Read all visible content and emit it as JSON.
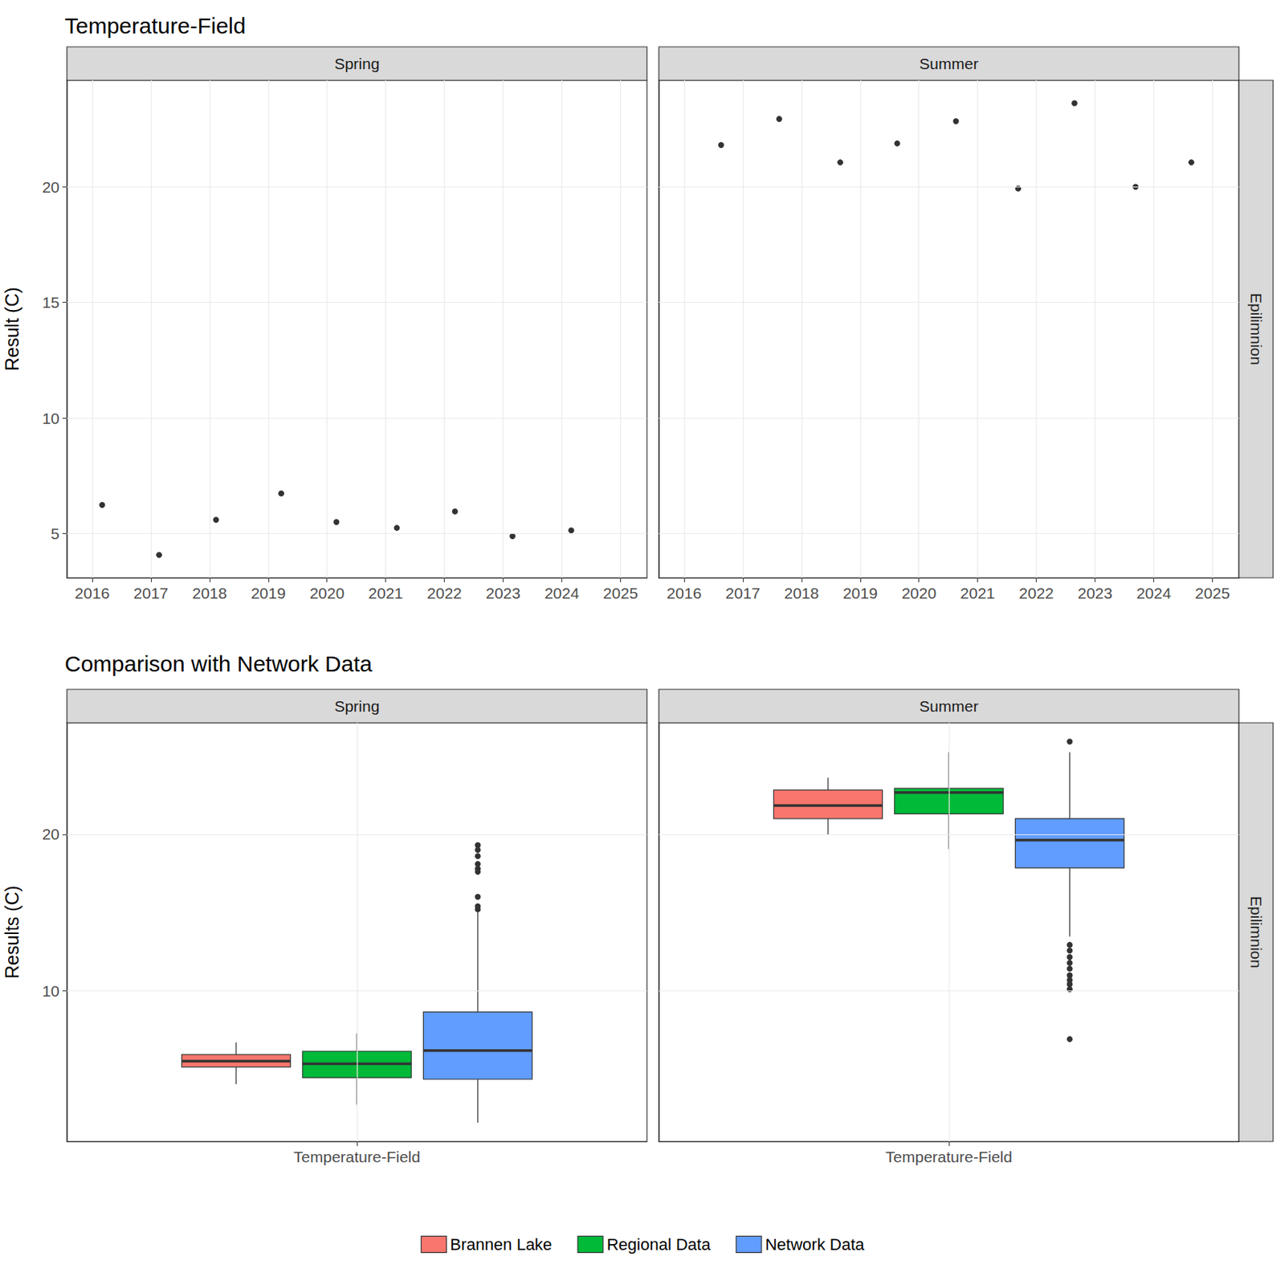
{
  "chart_data": [
    {
      "type": "scatter",
      "title": "Temperature-Field",
      "y_label": "Result (C)",
      "row_label": "Epilimnion",
      "color": "#000000",
      "marker": "circle",
      "grid": true,
      "xlim": [
        2015.57,
        2025.45
      ],
      "xticks": [
        2016,
        2017,
        2018,
        2019,
        2020,
        2021,
        2022,
        2023,
        2024,
        2025
      ],
      "ylim": [
        3.09,
        24.61
      ],
      "yticks": [
        5,
        10,
        15,
        20
      ],
      "facets": [
        {
          "name": "Spring",
          "x": [
            2016.17,
            2017.14,
            2018.11,
            2019.22,
            2020.16,
            2021.19,
            2022.18,
            2023.16,
            2024.16
          ],
          "values": [
            6.24,
            4.08,
            5.6,
            6.74,
            5.5,
            5.25,
            5.96,
            4.89,
            5.14
          ]
        },
        {
          "name": "Summer",
          "x": [
            2016.63,
            2017.62,
            2018.66,
            2019.63,
            2020.63,
            2021.69,
            2022.65,
            2023.69,
            2024.64
          ],
          "values": [
            21.81,
            22.94,
            21.06,
            21.88,
            22.84,
            19.93,
            23.62,
            20.0,
            21.06
          ]
        }
      ]
    },
    {
      "type": "boxplot",
      "title": "Comparison with Network Data",
      "y_label": "Results (C)",
      "row_label": "Epilimnion",
      "categories": [
        "Temperature-Field"
      ],
      "grid": true,
      "legend": "bottom",
      "ylim": [
        0.37,
        27.12
      ],
      "yticks": [
        10,
        20
      ],
      "series": [
        {
          "name": "Brannen Lake",
          "color": "#F8766D"
        },
        {
          "name": "Regional Data",
          "color": "#00BA38"
        },
        {
          "name": "Network Data",
          "color": "#619CFF"
        }
      ],
      "facets": [
        {
          "name": "Spring",
          "boxes": [
            {
              "min": 4.03,
              "q1": 5.13,
              "median": 5.5,
              "q3": 5.92,
              "max": 6.7,
              "outliers": []
            },
            {
              "min": 2.72,
              "q1": 4.45,
              "median": 5.34,
              "q3": 6.13,
              "max": 7.28,
              "outliers": []
            },
            {
              "min": 1.57,
              "q1": 4.35,
              "median": 6.18,
              "q3": 8.64,
              "max": 15.0,
              "outliers": [
                15.2,
                15.4,
                16.0,
                17.6,
                17.8,
                18.1,
                18.6,
                19.0,
                19.3
              ]
            }
          ]
        },
        {
          "name": "Summer",
          "boxes": [
            {
              "min": 19.95,
              "q1": 21.0,
              "median": 21.83,
              "q3": 22.83,
              "max": 23.61,
              "outliers": []
            },
            {
              "min": 19.06,
              "q1": 21.31,
              "median": 22.67,
              "q3": 22.93,
              "max": 25.24,
              "outliers": []
            },
            {
              "min": 13.46,
              "q1": 17.85,
              "median": 19.63,
              "q3": 21.0,
              "max": 25.24,
              "outliers": [
                25.92,
                12.93,
                12.57,
                12.15,
                11.78,
                11.41,
                10.99,
                10.68,
                10.42,
                10.1,
                6.91
              ]
            }
          ]
        }
      ]
    }
  ]
}
